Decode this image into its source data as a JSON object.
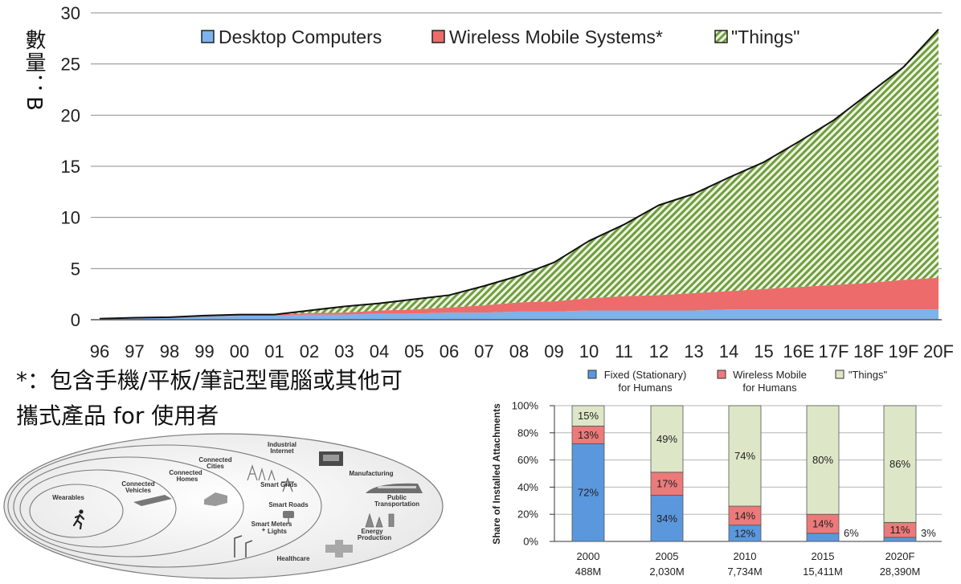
{
  "chart_data": [
    {
      "type": "area",
      "stacked": true,
      "categories": [
        "96",
        "97",
        "98",
        "99",
        "00",
        "01",
        "02",
        "03",
        "04",
        "05",
        "06",
        "07",
        "08",
        "09",
        "10",
        "11",
        "12",
        "13",
        "14",
        "15",
        "16E",
        "17F",
        "18F",
        "19F",
        "20F"
      ],
      "series": [
        {
          "name": "Desktop Computers",
          "color": "#7db2ea",
          "values": [
            0.1,
            0.15,
            0.2,
            0.3,
            0.4,
            0.4,
            0.5,
            0.5,
            0.6,
            0.6,
            0.7,
            0.7,
            0.8,
            0.8,
            0.9,
            0.9,
            0.9,
            0.9,
            1.0,
            1.0,
            1.0,
            1.0,
            1.0,
            1.0,
            1.0
          ]
        },
        {
          "name": "Wireless Mobile Systems*",
          "color": "#ee6b6b",
          "values": [
            0,
            0,
            0,
            0.05,
            0.1,
            0.1,
            0.15,
            0.2,
            0.3,
            0.4,
            0.5,
            0.7,
            0.9,
            1.0,
            1.2,
            1.4,
            1.5,
            1.7,
            1.8,
            2.0,
            2.2,
            2.4,
            2.6,
            2.9,
            3.1
          ]
        },
        {
          "name": "\"Things\"",
          "color": "#a9c97f",
          "pattern": "diagonal-hatch",
          "values": [
            0,
            0.05,
            0.05,
            0.05,
            0,
            0,
            0.25,
            0.6,
            0.7,
            1.0,
            1.2,
            1.9,
            2.6,
            3.8,
            5.6,
            7.0,
            8.8,
            9.7,
            11.1,
            12.4,
            14.2,
            16.1,
            18.5,
            20.8,
            24.3
          ]
        }
      ],
      "ylabel": "數量：B",
      "ylim": [
        0,
        30
      ],
      "yticks": [
        0,
        5,
        10,
        15,
        20,
        25,
        30
      ],
      "grid": true,
      "legend": "top"
    },
    {
      "type": "bar",
      "stacked": true,
      "categories": [
        "2000",
        "2005",
        "2010",
        "2015",
        "2020F"
      ],
      "category_sublabels": [
        "488M",
        "2,030M",
        "7,734M",
        "15,411M",
        "28,390M"
      ],
      "series": [
        {
          "name": "Fixed (Stationary)\nfor Humans",
          "color": "#5b97dc",
          "values": [
            72,
            34,
            12,
            6,
            3
          ]
        },
        {
          "name": "Wireless Mobile\nfor Humans",
          "color": "#ec7a7a",
          "values": [
            13,
            17,
            14,
            14,
            11
          ]
        },
        {
          "name": "\"Things\"",
          "color": "#dde7c7",
          "values": [
            15,
            49,
            74,
            80,
            86
          ]
        }
      ],
      "ylabel": "Share of Installed Attachments",
      "unit": "%",
      "ylim": [
        0,
        100
      ],
      "yticks": [
        0,
        20,
        40,
        60,
        80,
        100
      ],
      "grid": true,
      "legend": "top"
    }
  ],
  "footnote": {
    "lines": [
      "*：包含手機/平板/筆記型電腦或其他可",
      "攜式產品 for 使用者"
    ]
  },
  "illustration": {
    "wearables": "Wearables",
    "connected_vehicles": [
      "Connected",
      "Vehicles"
    ],
    "connected_homes": [
      "Connected",
      "Homes"
    ],
    "connected_cities": [
      "Connected",
      "Cities"
    ],
    "industrial_internet": [
      "Industrial",
      "Internet"
    ],
    "manufacturing": "Manufacturing",
    "smart_grids": "Smart Grids",
    "smart_roads": "Smart Roads",
    "public_transportation": [
      "Public",
      "Transportation"
    ],
    "smart_meters_lights": [
      "Smart Meters",
      "+",
      "Lights"
    ],
    "energy_production": [
      "Energy",
      "Production"
    ],
    "healthcare": "Healthcare",
    "icons": [
      "runner-icon",
      "car-icon",
      "house-icon",
      "city-skyline-icon",
      "factory-icon",
      "power-tower-icon",
      "traffic-light-icon",
      "train-icon",
      "street-lamp-icon",
      "energy-plant-icon",
      "medical-cross-icon"
    ]
  }
}
